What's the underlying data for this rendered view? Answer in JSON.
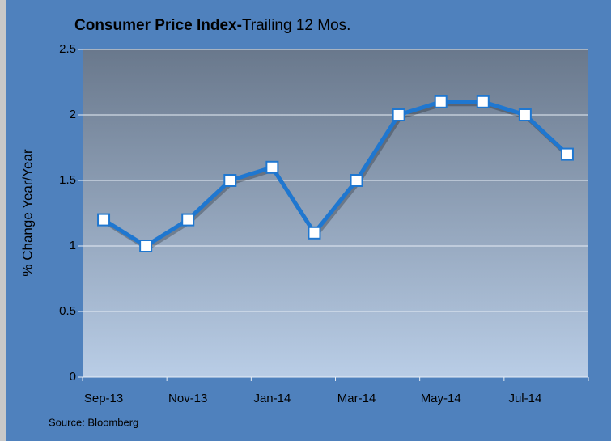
{
  "chart_data": {
    "type": "line",
    "title": {
      "bold": "Consumer Price Index-",
      "regular": "Trailing 12 Mos."
    },
    "ylabel": "% Change Year/Year",
    "source": "Source: Bloomberg",
    "categories": [
      "Sep-13",
      null,
      "Nov-13",
      null,
      "Jan-14",
      null,
      "Mar-14",
      null,
      "May-14",
      null,
      "Jul-14",
      null
    ],
    "values": [
      1.2,
      1.0,
      1.2,
      1.5,
      1.6,
      1.1,
      1.5,
      2.0,
      2.1,
      2.1,
      2.0,
      1.7
    ],
    "color": "#1f77d0",
    "ylim": [
      0,
      2.5
    ],
    "yticks": [
      0,
      0.5,
      1,
      1.5,
      2,
      2.5
    ],
    "grid": true
  }
}
